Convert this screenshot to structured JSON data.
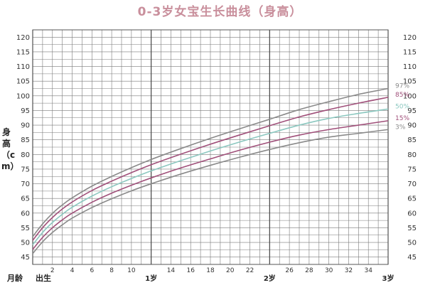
{
  "chart_data": {
    "type": "line",
    "title": "0-3岁女宝生长曲线（身高）",
    "ylabel": "身高（cm）",
    "xlabel": "月龄",
    "x_start_label": "出生",
    "ylim": [
      42.5,
      122.5
    ],
    "xlim": [
      0,
      36
    ],
    "yticks": [
      45,
      50,
      55,
      60,
      65,
      70,
      75,
      80,
      85,
      90,
      95,
      100,
      105,
      110,
      115,
      120
    ],
    "x_month_ticks": [
      2,
      4,
      6,
      8,
      10,
      14,
      16,
      18,
      20,
      22,
      26,
      28,
      30,
      32,
      34
    ],
    "x_major_ticks": [
      {
        "x": 12,
        "label": "1岁"
      },
      {
        "x": 24,
        "label": "2岁"
      },
      {
        "x": 36,
        "label": "3岁"
      }
    ],
    "x": [
      0,
      1,
      2,
      3,
      4,
      6,
      8,
      10,
      12,
      15,
      18,
      21,
      24,
      27,
      30,
      33,
      36
    ],
    "series": [
      {
        "name": "97%",
        "color": "#8a8a8a",
        "values": [
          52.0,
          56.3,
          59.9,
          62.8,
          65.2,
          69.2,
          72.5,
          75.5,
          78.3,
          82.0,
          85.5,
          88.8,
          92.0,
          95.3,
          98.0,
          100.5,
          102.5
        ]
      },
      {
        "name": "85%",
        "color": "#a0507a",
        "values": [
          50.7,
          55.0,
          58.5,
          61.4,
          63.8,
          67.7,
          70.9,
          73.8,
          76.5,
          80.1,
          83.5,
          86.7,
          89.8,
          92.8,
          95.3,
          97.5,
          99.5
        ]
      },
      {
        "name": "50%",
        "color": "#8cc8c0",
        "values": [
          49.2,
          53.4,
          56.8,
          59.6,
          62.0,
          65.8,
          69.0,
          71.8,
          74.4,
          77.9,
          81.2,
          84.3,
          87.2,
          90.0,
          92.3,
          94.0,
          95.5
        ]
      },
      {
        "name": "15%",
        "color": "#a0507a",
        "values": [
          47.6,
          51.7,
          55.0,
          57.7,
          60.0,
          63.7,
          66.8,
          69.5,
          72.0,
          75.4,
          78.5,
          81.5,
          84.2,
          86.6,
          88.5,
          90.0,
          91.5
        ]
      },
      {
        "name": "3%",
        "color": "#8a8a8a",
        "values": [
          46.2,
          50.2,
          53.4,
          56.0,
          58.3,
          61.9,
          64.9,
          67.6,
          70.0,
          73.3,
          76.3,
          79.1,
          81.7,
          84.0,
          85.9,
          87.2,
          88.5
        ]
      }
    ]
  }
}
